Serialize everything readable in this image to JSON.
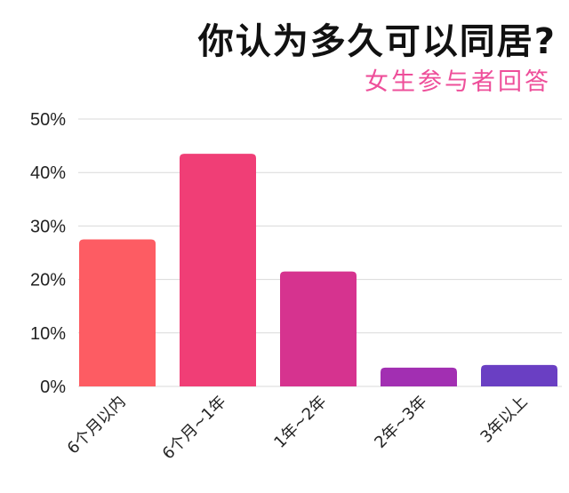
{
  "chart_data": {
    "type": "bar",
    "title": "你认为多久可以同居?",
    "subtitle": "女生参与者回答",
    "categories": [
      "6个月以内",
      "6个月~1年",
      "1年~2年",
      "2年~3年",
      "3年以上"
    ],
    "values": [
      27.5,
      43.5,
      21.5,
      3.5,
      4.0
    ],
    "colors": [
      "#fd5c63",
      "#f03e76",
      "#d6338f",
      "#a22fb2",
      "#6a3fc3"
    ],
    "ylim": [
      0,
      50
    ],
    "yticks": [
      "0%",
      "10%",
      "20%",
      "30%",
      "40%",
      "50%"
    ],
    "grid": true,
    "legend": "none"
  }
}
